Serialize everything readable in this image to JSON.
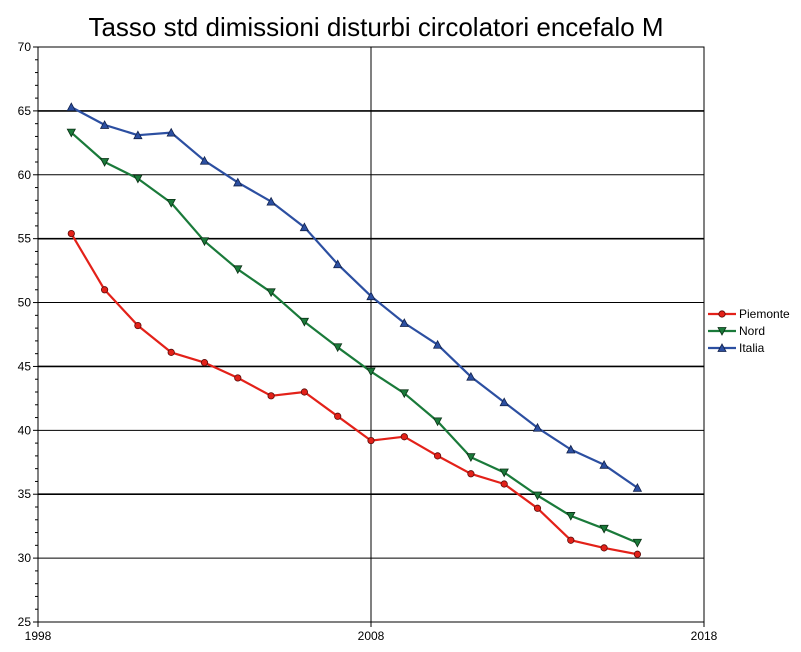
{
  "chart_data": {
    "type": "line",
    "title": "Tasso std dimissioni disturbi circolatori encefalo M",
    "xlabel": "",
    "ylabel": "",
    "xlim": [
      1998,
      2018
    ],
    "ylim": [
      25,
      70
    ],
    "x_ticks": [
      1998,
      2008,
      2018
    ],
    "y_ticks": [
      25,
      30,
      35,
      40,
      45,
      50,
      55,
      60,
      65,
      70
    ],
    "grid": "horizontal lines every 5 units; vertical line at 2008",
    "legend_position": "right",
    "x": [
      1999,
      2000,
      2001,
      2002,
      2003,
      2004,
      2005,
      2006,
      2007,
      2008,
      2009,
      2010,
      2011,
      2012,
      2013,
      2014,
      2015,
      2016
    ],
    "series": [
      {
        "name": "Piemonte",
        "color": "#e32119",
        "marker": "circle",
        "values": [
          55.4,
          51.0,
          48.2,
          46.1,
          45.3,
          44.1,
          42.7,
          43.0,
          41.1,
          39.2,
          39.5,
          38.0,
          36.6,
          35.8,
          33.9,
          31.4,
          30.8,
          30.3
        ]
      },
      {
        "name": "Nord",
        "color": "#1a7a3a",
        "marker": "triangle-down",
        "values": [
          63.3,
          61.0,
          59.7,
          57.8,
          54.8,
          52.6,
          50.8,
          48.5,
          46.5,
          44.6,
          42.9,
          40.7,
          37.9,
          36.7,
          34.9,
          33.3,
          32.3,
          31.2
        ]
      },
      {
        "name": "Italia",
        "color": "#2c4fa1",
        "marker": "triangle-up",
        "values": [
          65.3,
          63.9,
          63.1,
          63.3,
          61.1,
          59.4,
          57.9,
          55.9,
          53.0,
          50.5,
          48.4,
          46.7,
          44.2,
          42.2,
          40.2,
          38.5,
          37.3,
          35.5
        ]
      }
    ]
  }
}
